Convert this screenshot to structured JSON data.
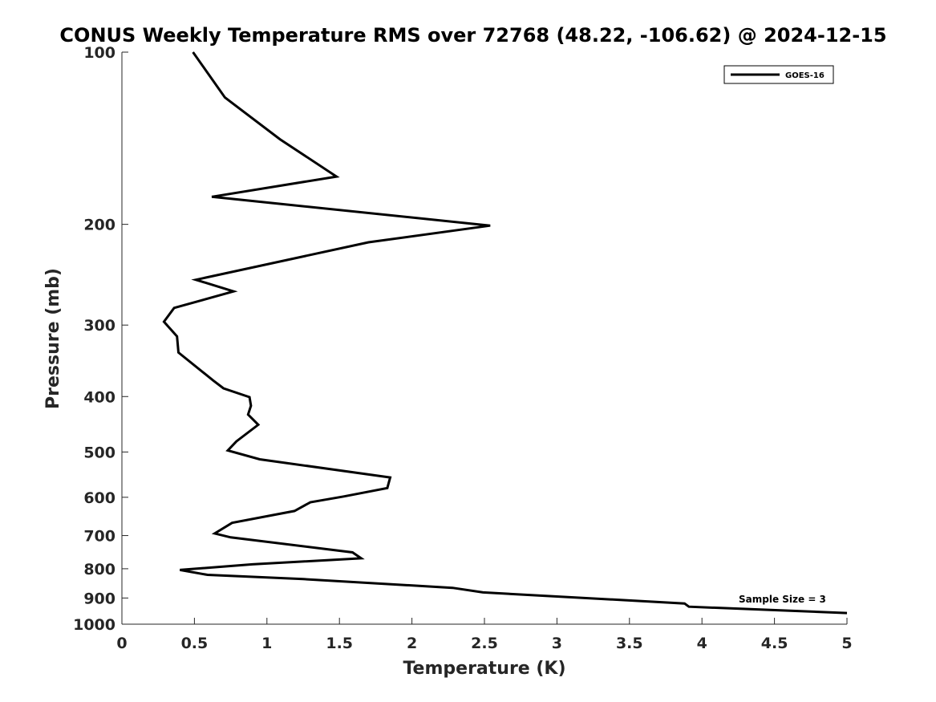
{
  "chart_data": {
    "type": "line",
    "title": "CONUS Weekly Temperature RMS over 72768 (48.22, -106.62) @ 2024-12-15",
    "xlabel": "Temperature (K)",
    "ylabel": "Pressure (mb)",
    "xlim": [
      0,
      5
    ],
    "ylim": [
      1000,
      100
    ],
    "yscale": "log",
    "y_reversed": true,
    "grid": false,
    "legend_position": "top-right",
    "xticks": [
      0,
      0.5,
      1,
      1.5,
      2,
      2.5,
      3,
      3.5,
      4,
      4.5,
      5
    ],
    "xtick_labels": [
      "0",
      "0.5",
      "1",
      "1.5",
      "2",
      "2.5",
      "3",
      "3.5",
      "4",
      "4.5",
      "5"
    ],
    "yticks": [
      100,
      200,
      300,
      400,
      500,
      600,
      700,
      800,
      900,
      1000
    ],
    "ytick_labels": [
      "100",
      "200",
      "300",
      "400",
      "500",
      "600",
      "700",
      "800",
      "900",
      "1000"
    ],
    "annotation": "Sample Size = 3",
    "series": [
      {
        "name": "GOES-16",
        "color": "#000000",
        "x": [
          0.49,
          0.71,
          1.09,
          1.48,
          0.62,
          2.54,
          1.7,
          0.51,
          0.77,
          0.36,
          0.29,
          0.38,
          0.39,
          0.63,
          0.7,
          0.88,
          0.89,
          0.87,
          0.94,
          0.79,
          0.73,
          0.95,
          1.85,
          1.83,
          1.53,
          1.3,
          1.19,
          0.76,
          0.64,
          0.75,
          1.59,
          1.65,
          0.9,
          0.4,
          0.59,
          1.25,
          2.28,
          2.49,
          3.88,
          3.91,
          5.0
        ],
        "y": [
          100,
          120,
          142,
          165,
          179,
          201,
          215,
          250,
          262,
          280,
          296,
          314,
          335,
          375,
          387,
          401,
          415,
          430,
          448,
          479,
          497,
          515,
          554,
          578,
          598,
          612,
          634,
          665,
          694,
          705,
          749,
          767,
          786,
          804,
          820,
          834,
          864,
          880,
          920,
          932,
          956
        ]
      }
    ]
  }
}
